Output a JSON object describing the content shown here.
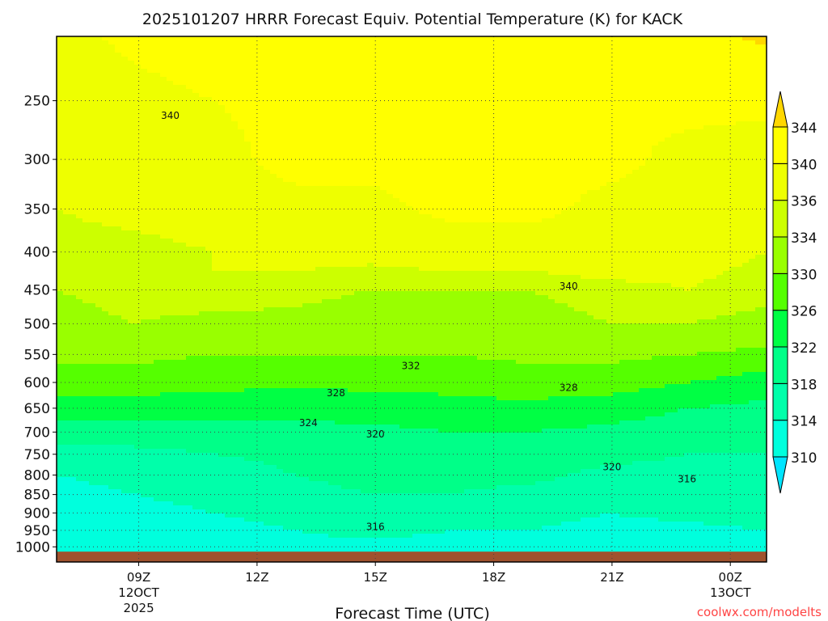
{
  "chart_data": {
    "type": "heatmap",
    "title": "2025101207 HRRR Forecast Equiv. Potential Temperature (K) for KACK",
    "xlabel": "Forecast Time (UTC)",
    "ylabel": "",
    "watermark": "coolwx.com/modelts",
    "x_hours": [
      7,
      9,
      11,
      13,
      15,
      17,
      19,
      21,
      23,
      25
    ],
    "xlim": [
      7,
      25
    ],
    "x_ticks": [
      {
        "hour": 9,
        "label": "09Z",
        "sub1": "12OCT",
        "sub2": "2025"
      },
      {
        "hour": 12,
        "label": "12Z",
        "sub1": "",
        "sub2": ""
      },
      {
        "hour": 15,
        "label": "15Z",
        "sub1": "",
        "sub2": ""
      },
      {
        "hour": 18,
        "label": "18Z",
        "sub1": "",
        "sub2": ""
      },
      {
        "hour": 21,
        "label": "21Z",
        "sub1": "",
        "sub2": ""
      },
      {
        "hour": 24,
        "label": "00Z",
        "sub1": "13OCT",
        "sub2": ""
      }
    ],
    "y_ticks": [
      250,
      300,
      350,
      400,
      450,
      500,
      550,
      600,
      650,
      700,
      750,
      800,
      850,
      900,
      950,
      1000
    ],
    "ylim_hPa": [
      1048,
      205
    ],
    "surface_hPa": 1015,
    "levels": [
      1000,
      950,
      900,
      850,
      800,
      750,
      700,
      650,
      600,
      550,
      500,
      450,
      400,
      350,
      300,
      250,
      200
    ],
    "values": [
      [
        312,
        311,
        312,
        313,
        313,
        313,
        313,
        313,
        313,
        314
      ],
      [
        310,
        311,
        313,
        314,
        315,
        314,
        314,
        313,
        313,
        314
      ],
      [
        312,
        313,
        314,
        315,
        316,
        316,
        315,
        314,
        315,
        316
      ],
      [
        313,
        314,
        315,
        317,
        318,
        318,
        317,
        316,
        316,
        317
      ],
      [
        314,
        315,
        316,
        318,
        319,
        319,
        319,
        317,
        317,
        318
      ],
      [
        316,
        317,
        318,
        319,
        320,
        320,
        320,
        319,
        318,
        318
      ],
      [
        320,
        320,
        320,
        321,
        321,
        322,
        322,
        321,
        320,
        319
      ],
      [
        324,
        324,
        324,
        323,
        324,
        325,
        325,
        324,
        322,
        321
      ],
      [
        328,
        328,
        327,
        327,
        327,
        327,
        328,
        328,
        326,
        324
      ],
      [
        331,
        331,
        330,
        330,
        330,
        330,
        331,
        331,
        330,
        329
      ],
      [
        333,
        334,
        333,
        333,
        332,
        332,
        333,
        334,
        334,
        333
      ],
      [
        334,
        335,
        336,
        335,
        334,
        334,
        334,
        335,
        336,
        335
      ],
      [
        335,
        335,
        336,
        337,
        337,
        338,
        338,
        339,
        337,
        336
      ],
      [
        336,
        337,
        338,
        339,
        339,
        341,
        341,
        339,
        338,
        337
      ],
      [
        337,
        338,
        339,
        341,
        341,
        342,
        341,
        341,
        339,
        338
      ],
      [
        338,
        339,
        340,
        341,
        342,
        341,
        341,
        340,
        341,
        341
      ],
      [
        339,
        341,
        342,
        342,
        342,
        342,
        342,
        342,
        343,
        345
      ]
    ],
    "colorbar": {
      "bounds": [
        310,
        314,
        318,
        322,
        326,
        330,
        334,
        336,
        340,
        344
      ],
      "labels": [
        "310",
        "314",
        "318",
        "322",
        "326",
        "330",
        "334",
        "336",
        "340",
        "344"
      ],
      "colors": [
        "#00E5FF",
        "#00FFDD",
        "#00FFAA",
        "#00FF88",
        "#00FF44",
        "#55FF00",
        "#99FF00",
        "#CCFF00",
        "#EEFF00",
        "#FFFF00",
        "#FFD700"
      ]
    },
    "contour_labels": [
      {
        "hour": 9.8,
        "hPa": 262,
        "text": "340"
      },
      {
        "hour": 19.9,
        "hPa": 445,
        "text": "340"
      },
      {
        "hour": 15.9,
        "hPa": 570,
        "text": "332"
      },
      {
        "hour": 14.0,
        "hPa": 620,
        "text": "328"
      },
      {
        "hour": 19.9,
        "hPa": 610,
        "text": "328"
      },
      {
        "hour": 13.3,
        "hPa": 680,
        "text": "324"
      },
      {
        "hour": 15.0,
        "hPa": 705,
        "text": "320"
      },
      {
        "hour": 21.0,
        "hPa": 780,
        "text": "320"
      },
      {
        "hour": 22.9,
        "hPa": 810,
        "text": "316"
      },
      {
        "hour": 15.0,
        "hPa": 940,
        "text": "316"
      }
    ]
  }
}
